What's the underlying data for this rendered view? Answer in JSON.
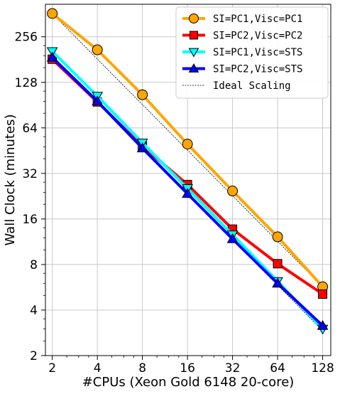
{
  "chart_data": {
    "type": "line",
    "xlabel": "#CPUs (Xeon Gold 6148 20-core)",
    "ylabel": "Wall Clock (minutes)",
    "x_scale": "log2",
    "y_scale": "log2",
    "x": [
      2,
      4,
      8,
      16,
      32,
      64,
      128
    ],
    "x_ticks": [
      "2",
      "4",
      "8",
      "16",
      "32",
      "64",
      "128"
    ],
    "y_ticks": [
      "2",
      "4",
      "8",
      "16",
      "32",
      "64",
      "128",
      "256"
    ],
    "y_tick_values": [
      2,
      4,
      8,
      16,
      32,
      64,
      128,
      256
    ],
    "xlim": [
      1.8,
      145
    ],
    "ylim": [
      2,
      420
    ],
    "grid": true,
    "legend_position": "top-right",
    "series": [
      {
        "name": "SI=PC1,Visc=PC1",
        "color": "#FFA500",
        "marker": "circle",
        "values": [
          365,
          210,
          106,
          50,
          24.5,
          12.2,
          5.7
        ]
      },
      {
        "name": "SI=PC2,Visc=PC2",
        "color": "#FF0000",
        "marker": "square",
        "values": [
          182,
          95,
          48.5,
          27,
          13.7,
          8.1,
          5.1
        ]
      },
      {
        "name": "SI=PC1,Visc=STS",
        "color": "#00FFFF",
        "marker": "triangle-down",
        "values": [
          205,
          104,
          51,
          25.5,
          12.6,
          6.2,
          3.0
        ]
      },
      {
        "name": "SI=PC2,Visc=STS",
        "color": "#0000FF",
        "marker": "triangle-up",
        "values": [
          187,
          96,
          47,
          23.5,
          11.8,
          6.0,
          3.15
        ]
      }
    ],
    "ideal_lines": [
      {
        "name": "Ideal Scaling",
        "color": "#000000",
        "style": "dashed",
        "x": [
          2,
          128
        ],
        "values": [
          365,
          5.7
        ]
      },
      {
        "name": "",
        "color": "#000000",
        "style": "dashed",
        "x": [
          2,
          128
        ],
        "values": [
          187,
          2.92
        ]
      }
    ]
  }
}
